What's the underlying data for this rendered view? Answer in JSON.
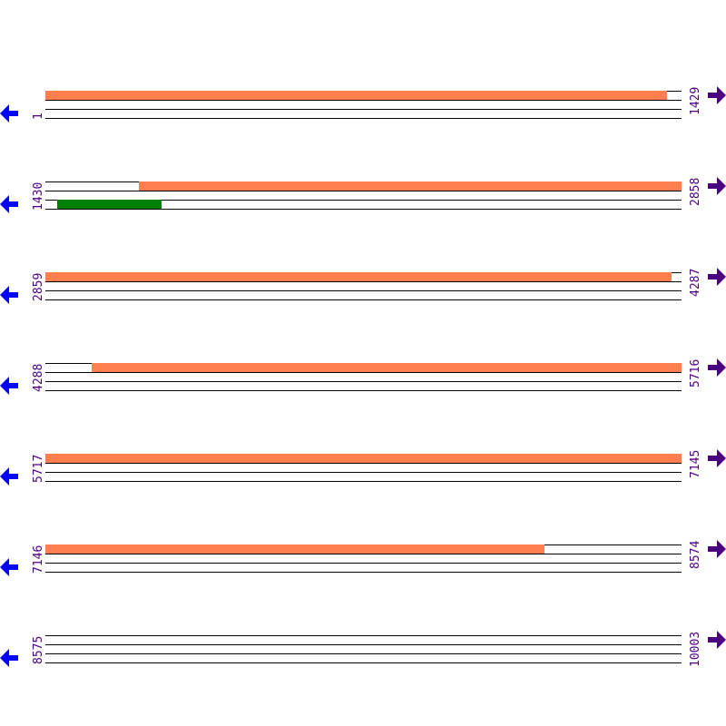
{
  "colors": {
    "feature_orange": "#ff7f50",
    "feature_green": "#008000",
    "line": "#000000",
    "label": "#4b0082",
    "reverse_arrow": "#0000ff",
    "forward_arrow": "#4b0082"
  },
  "icons": {
    "left": "arrow-left-icon",
    "right": "arrow-right-icon"
  },
  "rows": [
    {
      "start": "1",
      "end": "1429",
      "s": 1,
      "e": 1429,
      "features": [
        {
          "track": 0,
          "from": 1,
          "to": 1397,
          "color": "#ff7f50"
        }
      ]
    },
    {
      "start": "1430",
      "end": "2858",
      "s": 1430,
      "e": 2858,
      "features": [
        {
          "track": 0,
          "from": 1640,
          "to": 2858,
          "color": "#ff7f50"
        },
        {
          "track": 2,
          "from": 1456,
          "to": 1689,
          "color": "#008000"
        }
      ]
    },
    {
      "start": "2859",
      "end": "4287",
      "s": 2859,
      "e": 4287,
      "features": [
        {
          "track": 0,
          "from": 2859,
          "to": 4265,
          "color": "#ff7f50"
        }
      ]
    },
    {
      "start": "4288",
      "end": "5716",
      "s": 4288,
      "e": 5716,
      "features": [
        {
          "track": 0,
          "from": 4392,
          "to": 5716,
          "color": "#ff7f50"
        }
      ]
    },
    {
      "start": "5717",
      "end": "7145",
      "s": 5717,
      "e": 7145,
      "features": [
        {
          "track": 0,
          "from": 5717,
          "to": 7145,
          "color": "#ff7f50"
        }
      ]
    },
    {
      "start": "7146",
      "end": "8574",
      "s": 7146,
      "e": 8574,
      "features": [
        {
          "track": 0,
          "from": 7146,
          "to": 8267,
          "color": "#ff7f50"
        }
      ]
    },
    {
      "start": "8575",
      "end": "10003",
      "s": 8575,
      "e": 10003,
      "features": []
    }
  ]
}
